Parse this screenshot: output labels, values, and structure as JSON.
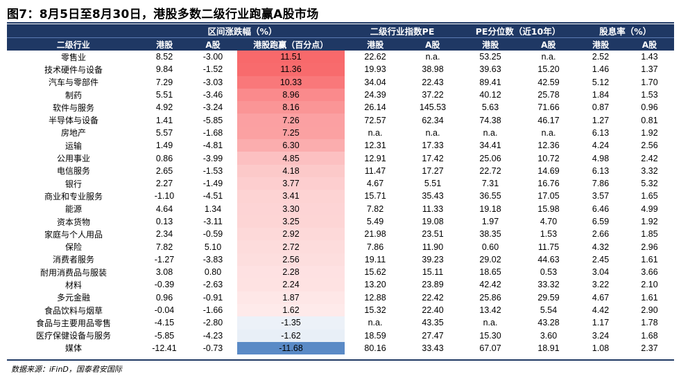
{
  "title": "图7：8月5日至8月30日，港股多数二级行业跑赢A股市场",
  "source": "数据来源：iFinD，国泰君安国际",
  "header_groups": [
    "区间涨跌幅（%）",
    "二级行业指数PE",
    "PE分位数（近10年）",
    "股息率（%）"
  ],
  "header_cols": [
    "二级行业",
    "港股",
    "A股",
    "港股跑赢（百分点）",
    "港股",
    "A股",
    "港股",
    "A股",
    "港股",
    "A股"
  ],
  "rows": [
    [
      "零售业",
      "8.52",
      "-3.00",
      "11.51",
      "22.62",
      "n.a.",
      "53.25",
      "n.a.",
      "2.52",
      "1.43"
    ],
    [
      "技术硬件与设备",
      "9.84",
      "-1.52",
      "11.36",
      "19.93",
      "38.98",
      "39.63",
      "15.20",
      "1.46",
      "1.37"
    ],
    [
      "汽车与零部件",
      "7.29",
      "-3.03",
      "10.33",
      "34.04",
      "22.43",
      "89.41",
      "42.59",
      "5.12",
      "1.70"
    ],
    [
      "制药",
      "5.51",
      "-3.46",
      "8.96",
      "24.39",
      "37.22",
      "40.12",
      "25.78",
      "1.84",
      "1.53"
    ],
    [
      "软件与服务",
      "4.92",
      "-3.24",
      "8.16",
      "26.14",
      "145.53",
      "5.63",
      "71.66",
      "0.87",
      "0.96"
    ],
    [
      "半导体与设备",
      "1.41",
      "-5.85",
      "7.26",
      "72.57",
      "62.34",
      "74.38",
      "46.17",
      "1.27",
      "0.81"
    ],
    [
      "房地产",
      "5.57",
      "-1.68",
      "7.25",
      "n.a.",
      "n.a.",
      "n.a.",
      "n.a.",
      "6.13",
      "1.92"
    ],
    [
      "运输",
      "1.49",
      "-4.81",
      "6.30",
      "12.31",
      "17.33",
      "34.41",
      "12.36",
      "4.24",
      "2.56"
    ],
    [
      "公用事业",
      "0.86",
      "-3.99",
      "4.85",
      "12.91",
      "17.42",
      "25.06",
      "10.72",
      "4.98",
      "2.42"
    ],
    [
      "电信服务",
      "2.65",
      "-1.53",
      "4.18",
      "11.47",
      "17.27",
      "22.72",
      "14.69",
      "6.13",
      "3.32"
    ],
    [
      "银行",
      "2.27",
      "-1.49",
      "3.77",
      "4.67",
      "5.51",
      "7.31",
      "16.76",
      "7.86",
      "5.32"
    ],
    [
      "商业和专业服务",
      "-1.10",
      "-4.51",
      "3.41",
      "15.71",
      "35.43",
      "36.55",
      "17.05",
      "3.57",
      "1.65"
    ],
    [
      "能源",
      "4.64",
      "1.34",
      "3.30",
      "7.82",
      "11.33",
      "19.18",
      "15.98",
      "6.46",
      "4.99"
    ],
    [
      "资本货物",
      "0.13",
      "-3.11",
      "3.25",
      "5.49",
      "19.08",
      "1.97",
      "4.70",
      "6.59",
      "1.92"
    ],
    [
      "家庭与个人用品",
      "2.34",
      "-0.59",
      "2.92",
      "21.98",
      "23.51",
      "38.35",
      "1.53",
      "2.66",
      "1.85"
    ],
    [
      "保险",
      "7.82",
      "5.10",
      "2.72",
      "7.86",
      "11.90",
      "0.60",
      "11.75",
      "4.32",
      "2.96"
    ],
    [
      "消费者服务",
      "-1.27",
      "-3.83",
      "2.56",
      "19.11",
      "39.23",
      "29.02",
      "44.63",
      "2.45",
      "1.61"
    ],
    [
      "耐用消费品与服装",
      "3.08",
      "0.80",
      "2.28",
      "15.62",
      "15.11",
      "18.65",
      "0.53",
      "3.04",
      "3.66"
    ],
    [
      "材料",
      "-0.39",
      "-2.63",
      "2.24",
      "13.20",
      "23.89",
      "42.42",
      "33.32",
      "3.22",
      "2.10"
    ],
    [
      "多元金融",
      "0.96",
      "-0.91",
      "1.87",
      "12.88",
      "22.42",
      "25.86",
      "29.59",
      "4.67",
      "1.61"
    ],
    [
      "食品饮料与烟草",
      "-0.04",
      "-1.66",
      "1.62",
      "15.32",
      "22.40",
      "13.42",
      "5.54",
      "4.42",
      "2.90"
    ],
    [
      "食品与主要用品零售",
      "-4.15",
      "-2.80",
      "-1.35",
      "n.a.",
      "43.35",
      "n.a.",
      "43.28",
      "1.17",
      "1.78"
    ],
    [
      "医疗保健设备与服务",
      "-5.85",
      "-4.23",
      "-1.62",
      "18.59",
      "27.47",
      "15.30",
      "3.60",
      "3.24",
      "1.68"
    ],
    [
      "媒体",
      "-12.41",
      "-0.73",
      "-11.68",
      "80.16",
      "33.43",
      "67.07",
      "18.91",
      "1.08",
      "2.37"
    ]
  ],
  "heat_colors": {
    "positive": "#f8696b",
    "neutral": "#ffffff",
    "negative": "#5a8ac6"
  }
}
